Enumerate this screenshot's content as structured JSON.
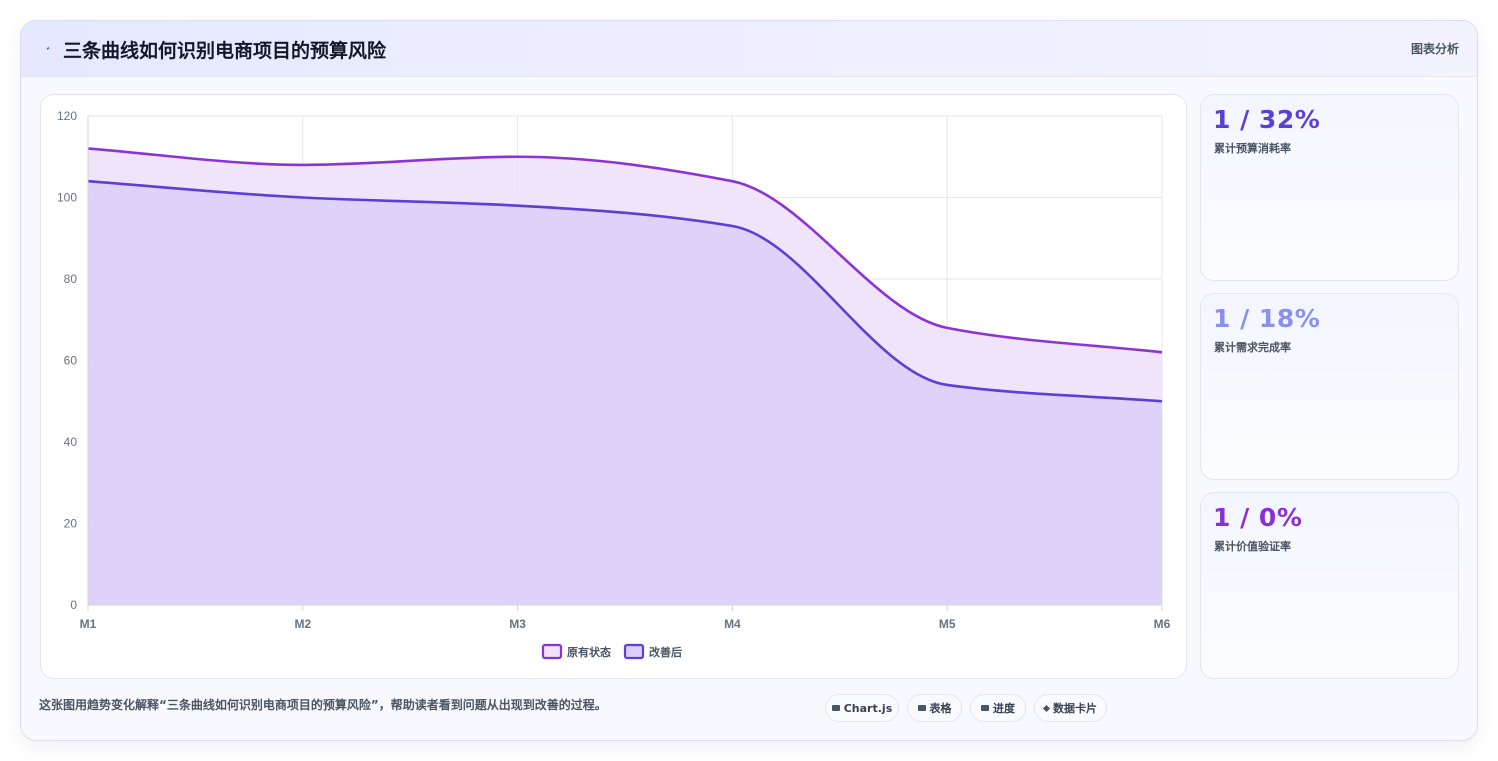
{
  "header": {
    "title": "三条曲线如何识别电商项目的预算风险",
    "badge": "图表分析",
    "icon": "lightning-icon"
  },
  "chart_data": {
    "type": "area",
    "title": "",
    "xlabel": "",
    "ylabel": "",
    "categories": [
      "M1",
      "M2",
      "M3",
      "M4",
      "M5",
      "M6"
    ],
    "ylim": [
      0,
      120
    ],
    "yticks": [
      "0",
      "20",
      "40",
      "60",
      "80",
      "100",
      "120"
    ],
    "grid": true,
    "legend_position": "bottom",
    "series": [
      {
        "name": "原有状态",
        "values": [
          112,
          108,
          110,
          104,
          68,
          62
        ],
        "color": "#8b34d6",
        "fill": "#eee1f9"
      },
      {
        "name": "改善后",
        "values": [
          104,
          100,
          98,
          93,
          54,
          50
        ],
        "color": "#5b3fd6",
        "fill": "#dccff8"
      }
    ]
  },
  "stats": [
    {
      "value": "1 / 32%",
      "label": "累计预算消耗率",
      "color": "#5b3fd6"
    },
    {
      "value": "1 / 18%",
      "label": "累计需求完成率",
      "color": "#8b8ff0"
    },
    {
      "value": "1 / 0%",
      "label": "累计价值验证率",
      "color": "#8b2fd6"
    }
  ],
  "footer": {
    "description": "这张图用趋势变化解释“三条曲线如何识别电商项目的预算风险”，帮助读者看到问题从出现到改善的过程。",
    "pills": [
      "Chart.js",
      "表格",
      "进度",
      "数据卡片"
    ]
  }
}
